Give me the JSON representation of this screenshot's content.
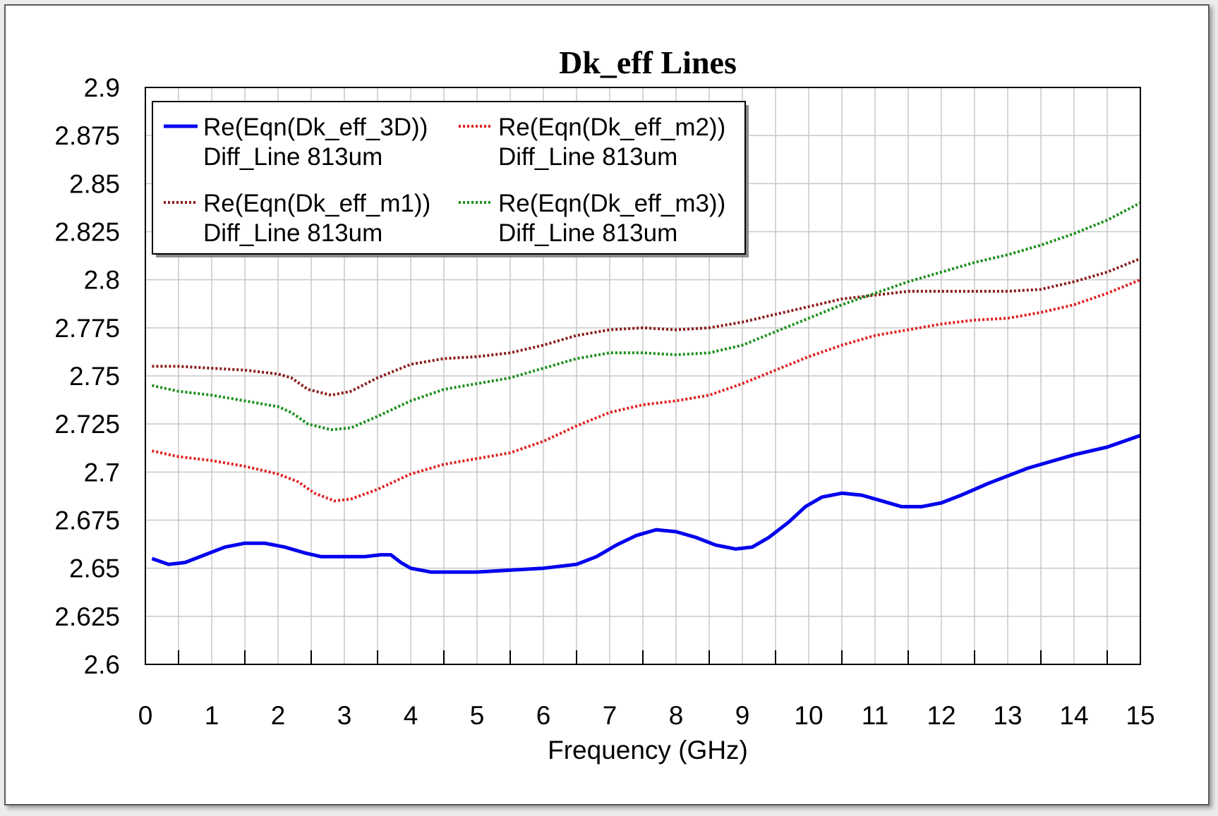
{
  "chart_data": {
    "type": "line",
    "title": "Dk_eff Lines",
    "xlabel": "Frequency (GHz)",
    "ylabel": "",
    "xlim": [
      0,
      15
    ],
    "ylim": [
      2.6,
      2.9
    ],
    "x_ticks": [
      "0",
      "1",
      "2",
      "3",
      "4",
      "5",
      "6",
      "7",
      "8",
      "9",
      "10",
      "11",
      "12",
      "13",
      "14",
      "15"
    ],
    "y_ticks": [
      "2.6",
      "2.625",
      "2.65",
      "2.675",
      "2.7",
      "2.725",
      "2.75",
      "2.775",
      "2.8",
      "2.825",
      "2.85",
      "2.875",
      "2.9"
    ],
    "grid": true,
    "legend_position": "top-left",
    "series": [
      {
        "name": "Re(Eqn(Dk_eff_3D))",
        "name_line2": "Diff_Line 813um",
        "color": "#0000ee",
        "style": "solid",
        "points": [
          [
            0.1,
            2.655
          ],
          [
            0.35,
            2.652
          ],
          [
            0.6,
            2.653
          ],
          [
            0.9,
            2.657
          ],
          [
            1.2,
            2.661
          ],
          [
            1.5,
            2.663
          ],
          [
            1.8,
            2.663
          ],
          [
            2.1,
            2.661
          ],
          [
            2.4,
            2.658
          ],
          [
            2.65,
            2.656
          ],
          [
            3.0,
            2.656
          ],
          [
            3.3,
            2.656
          ],
          [
            3.55,
            2.657
          ],
          [
            3.7,
            2.657
          ],
          [
            3.85,
            2.653
          ],
          [
            4.0,
            2.65
          ],
          [
            4.3,
            2.648
          ],
          [
            4.7,
            2.648
          ],
          [
            5.0,
            2.648
          ],
          [
            5.5,
            2.649
          ],
          [
            6.0,
            2.65
          ],
          [
            6.5,
            2.652
          ],
          [
            6.8,
            2.656
          ],
          [
            7.1,
            2.662
          ],
          [
            7.4,
            2.667
          ],
          [
            7.7,
            2.67
          ],
          [
            8.0,
            2.669
          ],
          [
            8.3,
            2.666
          ],
          [
            8.6,
            2.662
          ],
          [
            8.9,
            2.66
          ],
          [
            9.15,
            2.661
          ],
          [
            9.4,
            2.666
          ],
          [
            9.7,
            2.674
          ],
          [
            9.95,
            2.682
          ],
          [
            10.2,
            2.687
          ],
          [
            10.5,
            2.689
          ],
          [
            10.8,
            2.688
          ],
          [
            11.1,
            2.685
          ],
          [
            11.4,
            2.682
          ],
          [
            11.7,
            2.682
          ],
          [
            12.0,
            2.684
          ],
          [
            12.3,
            2.688
          ],
          [
            12.7,
            2.694
          ],
          [
            13.0,
            2.698
          ],
          [
            13.3,
            2.702
          ],
          [
            13.7,
            2.706
          ],
          [
            14.0,
            2.709
          ],
          [
            14.5,
            2.713
          ],
          [
            15.0,
            2.719
          ]
        ]
      },
      {
        "name": "Re(Eqn(Dk_eff_m2))",
        "name_line2": "Diff_Line 813um",
        "color": "#e02020",
        "style": "dotted",
        "points": [
          [
            0.1,
            2.711
          ],
          [
            0.5,
            2.708
          ],
          [
            1.0,
            2.706
          ],
          [
            1.5,
            2.703
          ],
          [
            2.0,
            2.699
          ],
          [
            2.3,
            2.695
          ],
          [
            2.55,
            2.689
          ],
          [
            2.85,
            2.685
          ],
          [
            3.1,
            2.686
          ],
          [
            3.5,
            2.691
          ],
          [
            4.0,
            2.699
          ],
          [
            4.5,
            2.704
          ],
          [
            5.0,
            2.707
          ],
          [
            5.5,
            2.71
          ],
          [
            6.0,
            2.716
          ],
          [
            6.5,
            2.724
          ],
          [
            7.0,
            2.731
          ],
          [
            7.5,
            2.735
          ],
          [
            8.0,
            2.737
          ],
          [
            8.5,
            2.74
          ],
          [
            9.0,
            2.746
          ],
          [
            9.5,
            2.753
          ],
          [
            10.0,
            2.76
          ],
          [
            10.5,
            2.766
          ],
          [
            11.0,
            2.771
          ],
          [
            11.5,
            2.774
          ],
          [
            12.0,
            2.777
          ],
          [
            12.5,
            2.779
          ],
          [
            13.0,
            2.78
          ],
          [
            13.5,
            2.783
          ],
          [
            14.0,
            2.787
          ],
          [
            14.5,
            2.793
          ],
          [
            15.0,
            2.8
          ]
        ]
      },
      {
        "name": "Re(Eqn(Dk_eff_m1))",
        "name_line2": "Diff_Line 813um",
        "color": "#8b1a1a",
        "style": "dotted",
        "points": [
          [
            0.1,
            2.755
          ],
          [
            0.5,
            2.755
          ],
          [
            1.0,
            2.754
          ],
          [
            1.5,
            2.753
          ],
          [
            2.0,
            2.751
          ],
          [
            2.2,
            2.749
          ],
          [
            2.45,
            2.743
          ],
          [
            2.8,
            2.74
          ],
          [
            3.1,
            2.742
          ],
          [
            3.5,
            2.749
          ],
          [
            4.0,
            2.756
          ],
          [
            4.5,
            2.759
          ],
          [
            5.0,
            2.76
          ],
          [
            5.5,
            2.762
          ],
          [
            6.0,
            2.766
          ],
          [
            6.5,
            2.771
          ],
          [
            7.0,
            2.774
          ],
          [
            7.5,
            2.775
          ],
          [
            8.0,
            2.774
          ],
          [
            8.5,
            2.775
          ],
          [
            9.0,
            2.778
          ],
          [
            9.5,
            2.782
          ],
          [
            10.0,
            2.786
          ],
          [
            10.5,
            2.79
          ],
          [
            11.0,
            2.792
          ],
          [
            11.5,
            2.794
          ],
          [
            12.0,
            2.794
          ],
          [
            12.5,
            2.794
          ],
          [
            13.0,
            2.794
          ],
          [
            13.5,
            2.795
          ],
          [
            14.0,
            2.799
          ],
          [
            14.5,
            2.804
          ],
          [
            15.0,
            2.811
          ]
        ]
      },
      {
        "name": "Re(Eqn(Dk_eff_m3))",
        "name_line2": "Diff_Line 813um",
        "color": "#1a8f1a",
        "style": "dotted",
        "points": [
          [
            0.1,
            2.745
          ],
          [
            0.5,
            2.742
          ],
          [
            1.0,
            2.74
          ],
          [
            1.5,
            2.737
          ],
          [
            2.0,
            2.734
          ],
          [
            2.2,
            2.731
          ],
          [
            2.45,
            2.725
          ],
          [
            2.8,
            2.722
          ],
          [
            3.1,
            2.723
          ],
          [
            3.5,
            2.729
          ],
          [
            4.0,
            2.737
          ],
          [
            4.5,
            2.743
          ],
          [
            5.0,
            2.746
          ],
          [
            5.5,
            2.749
          ],
          [
            6.0,
            2.754
          ],
          [
            6.5,
            2.759
          ],
          [
            7.0,
            2.762
          ],
          [
            7.5,
            2.762
          ],
          [
            8.0,
            2.761
          ],
          [
            8.5,
            2.762
          ],
          [
            9.0,
            2.766
          ],
          [
            9.5,
            2.773
          ],
          [
            10.0,
            2.78
          ],
          [
            10.5,
            2.787
          ],
          [
            11.0,
            2.793
          ],
          [
            11.5,
            2.799
          ],
          [
            12.0,
            2.804
          ],
          [
            12.5,
            2.809
          ],
          [
            13.0,
            2.813
          ],
          [
            13.5,
            2.818
          ],
          [
            14.0,
            2.824
          ],
          [
            14.5,
            2.831
          ],
          [
            15.0,
            2.84
          ]
        ]
      }
    ]
  }
}
